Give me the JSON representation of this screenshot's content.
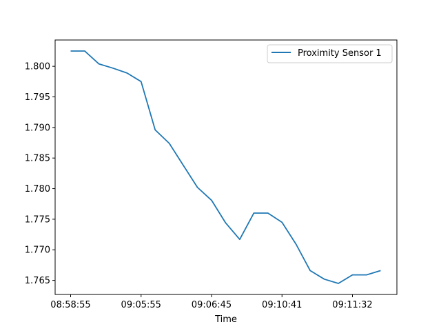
{
  "chart_data": {
    "type": "line",
    "title": "",
    "xlabel": "Time",
    "ylabel": "",
    "x_ticks": [
      "08:58:55",
      "09:05:55",
      "09:06:45",
      "09:10:41",
      "09:11:32"
    ],
    "y_ticks": [
      "1.765",
      "1.770",
      "1.775",
      "1.780",
      "1.785",
      "1.790",
      "1.795",
      "1.800"
    ],
    "ylim": [
      1.7627,
      1.8043
    ],
    "grid": false,
    "legend_position": "top-right",
    "series": [
      {
        "name": "Proximity Sensor 1",
        "color": "#1f77b4",
        "values": [
          1.8025,
          1.8025,
          1.8004,
          1.7997,
          1.7989,
          1.7975,
          1.7896,
          1.7874,
          1.7838,
          1.7802,
          1.7781,
          1.7744,
          1.7717,
          1.776,
          1.776,
          1.7745,
          1.7709,
          1.7666,
          1.7652,
          1.7645,
          1.7659,
          1.7659,
          1.7666
        ]
      }
    ]
  }
}
